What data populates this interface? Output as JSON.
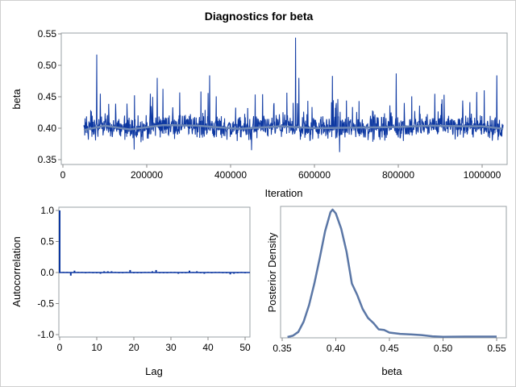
{
  "chart_data": [
    {
      "type": "line",
      "title": "Diagnostics for beta",
      "xlabel": "Iteration",
      "ylabel": "beta",
      "xlim": [
        0,
        1050000
      ],
      "ylim": [
        0.35,
        0.55
      ],
      "xticks": [
        "0",
        "200000",
        "400000",
        "600000",
        "800000",
        "1000000"
      ],
      "yticks": [
        "0.35",
        "0.40",
        "0.45",
        "0.50",
        "0.55"
      ],
      "iteration_range": [
        50000,
        1050000
      ],
      "typical_band": [
        0.375,
        0.43
      ],
      "notable_peaks": [
        {
          "x": 81000,
          "y": 0.517
        },
        {
          "x": 225000,
          "y": 0.48
        },
        {
          "x": 350000,
          "y": 0.484
        },
        {
          "x": 555000,
          "y": 0.544
        },
        {
          "x": 563000,
          "y": 0.48
        },
        {
          "x": 643000,
          "y": 0.483
        },
        {
          "x": 795000,
          "y": 0.487
        },
        {
          "x": 1035000,
          "y": 0.484
        }
      ],
      "notable_troughs": [
        {
          "x": 450000,
          "y": 0.365
        },
        {
          "x": 660000,
          "y": 0.362
        },
        {
          "x": 170000,
          "y": 0.366
        }
      ],
      "smooth_mean": {
        "x": [
          50000,
          100000,
          160000,
          240000,
          320000,
          420000,
          520000,
          600000,
          700000,
          800000,
          880000,
          950000,
          1000000,
          1050000
        ],
        "y": [
          0.397,
          0.404,
          0.398,
          0.405,
          0.404,
          0.399,
          0.403,
          0.4,
          0.401,
          0.402,
          0.404,
          0.403,
          0.403,
          0.399
        ]
      },
      "colors": {
        "trace": "#0b36a0",
        "trace_light": "#7a93cf",
        "smooth": "#6b86b5"
      }
    },
    {
      "type": "bar",
      "xlabel": "Lag",
      "ylabel": "Autocorrelation",
      "xlim": [
        0,
        50
      ],
      "ylim": [
        -1.0,
        1.0
      ],
      "xticks": [
        "0",
        "10",
        "20",
        "30",
        "40",
        "50"
      ],
      "yticks": [
        "-1.0",
        "-0.5",
        "0.0",
        "0.5",
        "1.0"
      ],
      "lags": [
        0,
        1,
        2,
        3,
        4,
        5,
        6,
        7,
        8,
        9,
        10,
        11,
        12,
        13,
        14,
        15,
        16,
        17,
        18,
        19,
        20,
        21,
        22,
        23,
        24,
        25,
        26,
        27,
        28,
        29,
        30,
        31,
        32,
        33,
        34,
        35,
        36,
        37,
        38,
        39,
        40,
        41,
        42,
        43,
        44,
        45,
        46,
        47,
        48,
        49,
        50
      ],
      "values": [
        1.0,
        0.01,
        0.01,
        -0.05,
        0.03,
        0.01,
        0.01,
        -0.01,
        0.01,
        0.0,
        0.0,
        -0.02,
        0.02,
        0.02,
        0.02,
        0.01,
        0.0,
        0.0,
        0.01,
        0.04,
        0.0,
        0.0,
        -0.01,
        0.01,
        0.01,
        0.02,
        0.04,
        -0.01,
        -0.01,
        0.0,
        0.01,
        0.01,
        -0.02,
        -0.01,
        -0.01,
        0.03,
        0.01,
        0.02,
        0.0,
        -0.02,
        0.01,
        -0.01,
        0.01,
        0.01,
        0.0,
        0.0,
        -0.03,
        -0.02,
        0.0,
        0.01,
        0.0
      ],
      "color": "#0b36a0"
    },
    {
      "type": "line",
      "xlabel": "beta",
      "ylabel": "Posterior Density",
      "xlim": [
        0.35,
        0.555
      ],
      "xticks": [
        "0.35",
        "0.40",
        "0.45",
        "0.50",
        "0.55"
      ],
      "x": [
        0.355,
        0.36,
        0.365,
        0.37,
        0.375,
        0.38,
        0.385,
        0.39,
        0.395,
        0.397,
        0.4,
        0.405,
        0.41,
        0.415,
        0.42,
        0.425,
        0.43,
        0.435,
        0.44,
        0.445,
        0.45,
        0.46,
        0.47,
        0.48,
        0.49,
        0.5,
        0.52,
        0.55
      ],
      "y": [
        0.0,
        0.01,
        0.04,
        0.12,
        0.25,
        0.42,
        0.62,
        0.83,
        0.98,
        1.0,
        0.97,
        0.85,
        0.67,
        0.42,
        0.33,
        0.22,
        0.15,
        0.11,
        0.06,
        0.055,
        0.035,
        0.025,
        0.02,
        0.015,
        0.006,
        0.002,
        0.003,
        0.003
      ],
      "color": "#5b77a6"
    }
  ]
}
